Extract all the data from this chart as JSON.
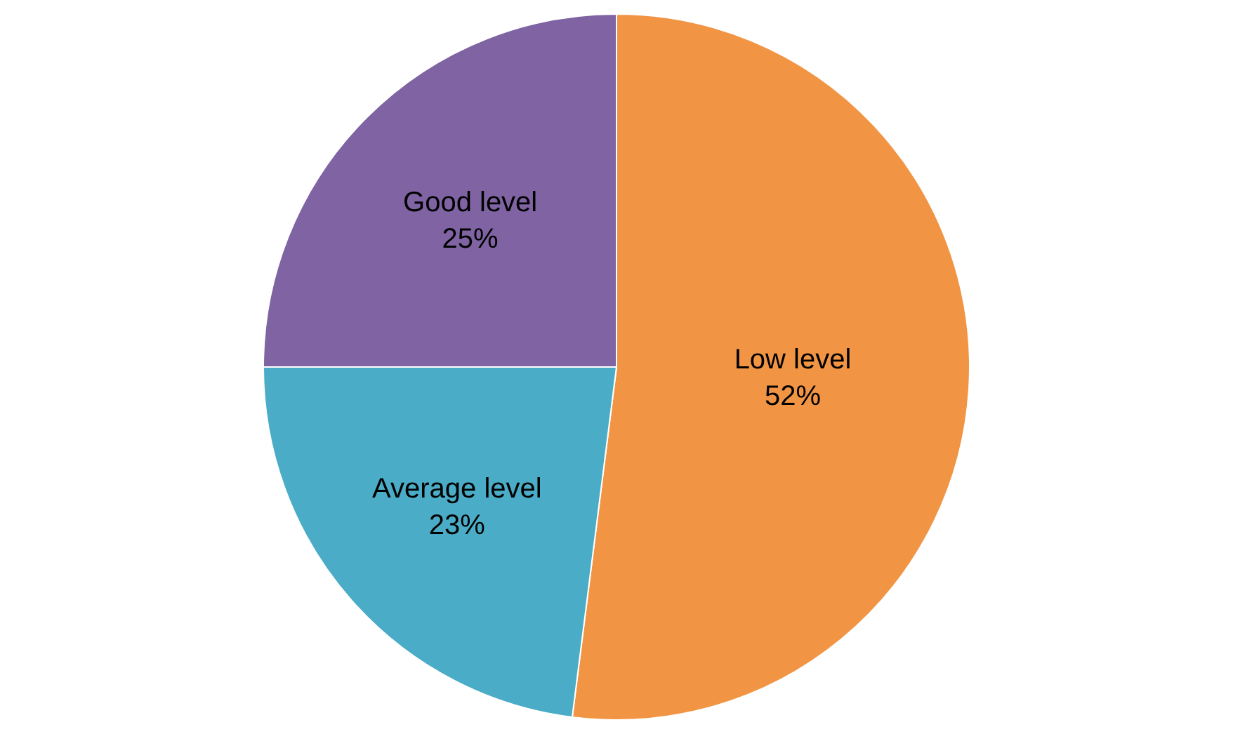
{
  "chart_data": {
    "type": "pie",
    "categories": [
      "Low level",
      "Average level",
      "Good level"
    ],
    "values": [
      52,
      23,
      25
    ],
    "value_labels": [
      "52%",
      "23%",
      "25%"
    ],
    "colors": [
      "#f19545",
      "#4aacc6",
      "#7f63a2"
    ],
    "legend": false
  }
}
